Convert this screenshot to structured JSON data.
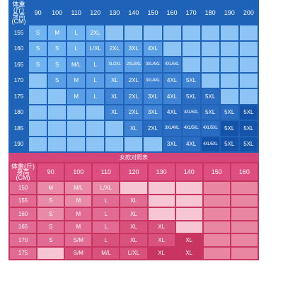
{
  "male_chart": {
    "corner": [
      "体重(斤)",
      "身高(CM)"
    ],
    "weights": [
      "90",
      "100",
      "110",
      "120",
      "130",
      "140",
      "150",
      "160",
      "170",
      "180",
      "190",
      "200"
    ],
    "rows": [
      {
        "height": "155",
        "cells": [
          "S",
          "M",
          "L",
          "2XL",
          "",
          "",
          "",
          "",
          "",
          "",
          "",
          ""
        ]
      },
      {
        "height": "160",
        "cells": [
          "S",
          "S",
          "L",
          "L/XL",
          "2XL",
          "3XL",
          "4XL",
          "",
          "",
          "",
          "",
          ""
        ]
      },
      {
        "height": "165",
        "cells": [
          "S",
          "S",
          "M/L",
          "L",
          "XL/2XL",
          "2XL/3XL",
          "3XL/4XL",
          "4XL/5XL",
          "",
          "",
          "",
          ""
        ]
      },
      {
        "height": "170",
        "cells": [
          "",
          "S",
          "M",
          "L",
          "XL",
          "2XL",
          "3XL/4XL",
          "4XL",
          "5XL",
          "",
          "",
          ""
        ]
      },
      {
        "height": "175",
        "cells": [
          "",
          "",
          "M",
          "L",
          "XL",
          "2XL",
          "3XL",
          "4XL",
          "5XL",
          "5XL",
          "",
          ""
        ]
      },
      {
        "height": "180",
        "cells": [
          "",
          "",
          "",
          "",
          "XL",
          "2XL",
          "3XL",
          "4XL",
          "4XL/5XL",
          "5XL",
          "5XL",
          "5XL"
        ]
      },
      {
        "height": "185",
        "cells": [
          "",
          "",
          "",
          "",
          "",
          "XL",
          "2XL",
          "3XL/4XL",
          "4XL/5XL",
          "4XL/5XL",
          "5XL",
          "5XL"
        ]
      },
      {
        "height": "190",
        "cells": [
          "",
          "",
          "",
          "",
          "",
          "",
          "",
          "3XL",
          "4XL",
          "4XL/5XL",
          "5XL",
          "5XL"
        ]
      }
    ]
  },
  "female_chart": {
    "title": "女款对照表",
    "corner": [
      "体重(斤)",
      "身高(CM)"
    ],
    "weights": [
      "90",
      "100",
      "110",
      "120",
      "130",
      "140",
      "150",
      "160"
    ],
    "rows": [
      {
        "height": "150",
        "cells": [
          "M",
          "M/L",
          "L/XL",
          "",
          "",
          "",
          "",
          ""
        ]
      },
      {
        "height": "155",
        "cells": [
          "S",
          "M",
          "L",
          "XL",
          "",
          "",
          "",
          ""
        ]
      },
      {
        "height": "160",
        "cells": [
          "S",
          "M",
          "L",
          "XL",
          "",
          "",
          "",
          ""
        ]
      },
      {
        "height": "165",
        "cells": [
          "S",
          "M",
          "L",
          "XL",
          "XL",
          "",
          "",
          ""
        ]
      },
      {
        "height": "170",
        "cells": [
          "S",
          "S/M",
          "L",
          "XL",
          "XL",
          "XL",
          "",
          ""
        ]
      },
      {
        "height": "175",
        "cells": [
          "",
          "S/M",
          "M/L",
          "L/XL",
          "XL",
          "XL",
          "",
          ""
        ]
      }
    ]
  }
}
